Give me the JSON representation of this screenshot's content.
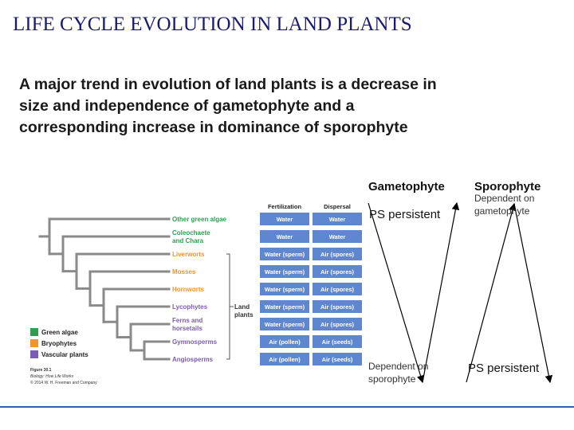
{
  "title": "LIFE CYCLE EVOLUTION IN LAND PLANTS",
  "body_lines": [
    "A major trend in evolution of land plants is a decrease in",
    "size and independence of gametophyte and a",
    "corresponding increase in dominance of sporophyte"
  ],
  "figure": {
    "headers": [
      "Fertilization",
      "Dispersal"
    ],
    "rows": [
      {
        "taxon": [
          "Other green algae"
        ],
        "group": "green",
        "fertilization": "Water",
        "dispersal": "Water"
      },
      {
        "taxon": [
          "Coleochaete",
          "and Chara"
        ],
        "group": "green",
        "fertilization": "Water",
        "dispersal": "Water"
      },
      {
        "taxon": [
          "Liverworts"
        ],
        "group": "orange",
        "fertilization": "Water (sperm)",
        "dispersal": "Air (spores)"
      },
      {
        "taxon": [
          "Mosses"
        ],
        "group": "orange",
        "fertilization": "Water (sperm)",
        "dispersal": "Air (spores)"
      },
      {
        "taxon": [
          "Hornworts"
        ],
        "group": "orange",
        "fertilization": "Water (sperm)",
        "dispersal": "Air (spores)"
      },
      {
        "taxon": [
          "Lycophytes"
        ],
        "group": "purple",
        "fertilization": "Water (sperm)",
        "dispersal": "Air (spores)"
      },
      {
        "taxon": [
          "Ferns and",
          "horsetails"
        ],
        "group": "purple",
        "fertilization": "Water (sperm)",
        "dispersal": "Air (spores)"
      },
      {
        "taxon": [
          "Gymnosperms"
        ],
        "group": "purple",
        "fertilization": "Air (pollen)",
        "dispersal": "Air (seeds)"
      },
      {
        "taxon": [
          "Angiosperms"
        ],
        "group": "purple",
        "fertilization": "Air (pollen)",
        "dispersal": "Air (seeds)"
      }
    ],
    "bracket_label": [
      "Land",
      "plants"
    ],
    "legend": [
      {
        "label": "Green algae",
        "color": "#2e9e4f"
      },
      {
        "label": "Bryophytes",
        "color": "#f0952e"
      },
      {
        "label": "Vascular plants",
        "color": "#7c5cb4"
      }
    ],
    "caption": [
      "Figure 30.1",
      "Biology: How Life Works",
      "© 2014 W. H. Freeman and Company"
    ]
  },
  "columns": {
    "gametophyte": {
      "heading": "Gametophyte",
      "top": [
        "PS persistent"
      ],
      "bottom": [
        "Dependent on",
        "sporophyte"
      ]
    },
    "sporophyte": {
      "heading": "Sporophyte",
      "top": [
        "Dependent on",
        "gametophyte"
      ],
      "bottom": [
        "PS persistent"
      ]
    }
  }
}
